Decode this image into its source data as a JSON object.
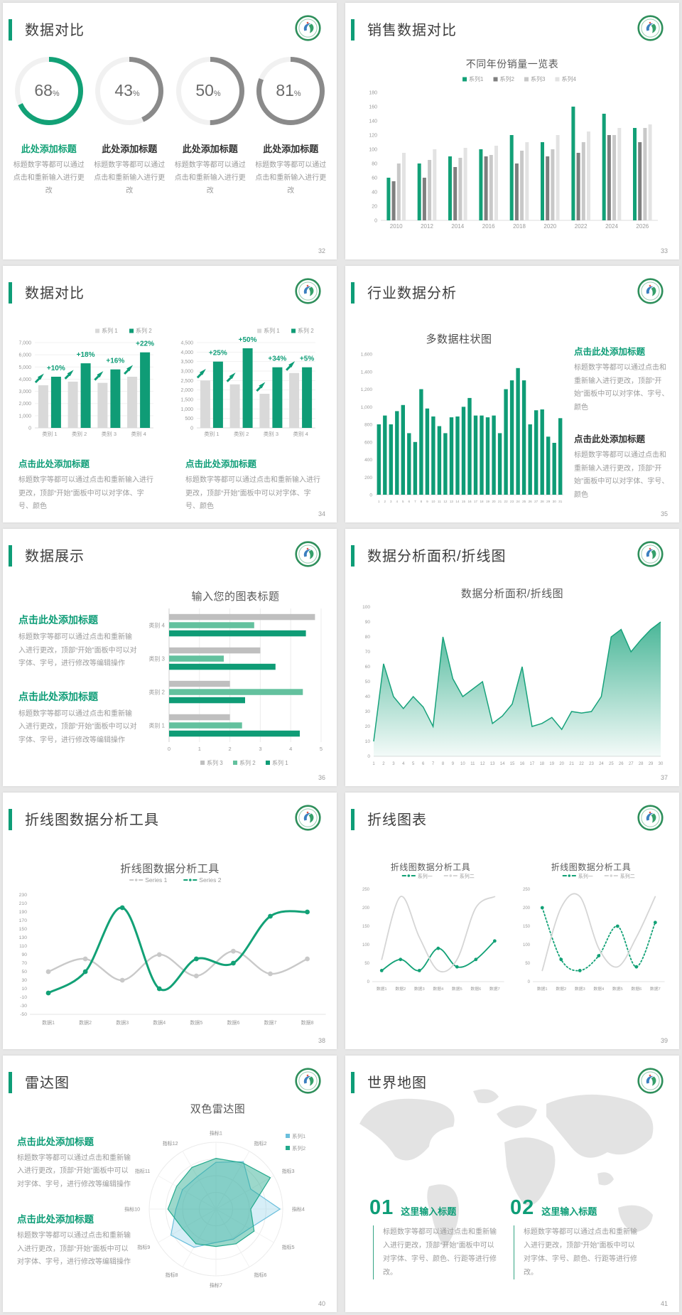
{
  "accent": "#0E9D77",
  "slides": {
    "s1": {
      "page": "32",
      "title": "数据对比",
      "items": [
        {
          "pct": 68,
          "unit": "%",
          "title": "此处添加标题",
          "body": "标题数字等都可以通过点击和重新输入进行更改",
          "color": "#12A176"
        },
        {
          "pct": 43,
          "unit": "%",
          "title": "此处添加标题",
          "body": "标题数字等都可以通过点击和重新输入进行更改",
          "color": "#8A8A8A"
        },
        {
          "pct": 50,
          "unit": "%",
          "title": "此处添加标题",
          "body": "标题数字等都可以通过点击和重新输入进行更改",
          "color": "#8A8A8A"
        },
        {
          "pct": 81,
          "unit": "%",
          "title": "此处添加标题",
          "body": "标题数字等都可以通过点击和重新输入进行更改",
          "color": "#8A8A8A"
        }
      ]
    },
    "s2": {
      "page": "33",
      "title": "销售数据对比",
      "chart": {
        "type": "bar",
        "title": "不同年份销量一览表",
        "legend": [
          "系列1",
          "系列2",
          "系列3",
          "系列4"
        ],
        "colors": [
          "#12A077",
          "#7F7F7F",
          "#C8C8C8",
          "#E3E3E3"
        ],
        "categories": [
          "2010",
          "2012",
          "2014",
          "2016",
          "2018",
          "2020",
          "2022",
          "2024",
          "2026"
        ],
        "series": [
          [
            60,
            80,
            90,
            100,
            120,
            110,
            160,
            150,
            130
          ],
          [
            55,
            60,
            75,
            90,
            80,
            90,
            95,
            120,
            110
          ],
          [
            80,
            85,
            88,
            92,
            98,
            100,
            110,
            120,
            130
          ],
          [
            95,
            100,
            102,
            105,
            110,
            120,
            125,
            130,
            135
          ]
        ],
        "ymax": 180,
        "ystep": 20
      }
    },
    "s3": {
      "page": "34",
      "title": "数据对比",
      "charts": [
        {
          "type": "bar",
          "legend": [
            "系列 1",
            "系列 2"
          ],
          "colors": [
            "#D9D9D9",
            "#0F9C76"
          ],
          "categories": [
            "类别 1",
            "类别 2",
            "类别 3",
            "类别 4"
          ],
          "series": [
            [
              3500,
              3800,
              3700,
              4200
            ],
            [
              4200,
              5300,
              4800,
              6200
            ]
          ],
          "ymax": 7000,
          "ystep": 1000,
          "labels": [
            "+10%",
            "+18%",
            "+16%",
            "+22%"
          ]
        },
        {
          "type": "bar",
          "legend": [
            "系列 1",
            "系列 2"
          ],
          "colors": [
            "#D9D9D9",
            "#0F9C76"
          ],
          "categories": [
            "类别 1",
            "类别 2",
            "类别 3",
            "类别 4"
          ],
          "series": [
            [
              2500,
              2300,
              1800,
              2900
            ],
            [
              3500,
              4200,
              3200,
              3200
            ]
          ],
          "ymax": 4500,
          "ystep": 500,
          "labels": [
            "+25%",
            "+50%",
            "+34%",
            "+5%"
          ]
        }
      ],
      "blocks": [
        {
          "h": "点击此处添加标题",
          "b": "标题数字等都可以通过点击和重新输入进行更改，顶部“开始”面板中可以对字体、字号、颜色"
        },
        {
          "h": "点击此处添加标题",
          "b": "标题数字等都可以通过点击和重新输入进行更改，顶部“开始”面板中可以对字体、字号、颜色"
        }
      ]
    },
    "s4": {
      "page": "35",
      "title": "行业数据分析",
      "chart": {
        "type": "bar",
        "title": "多数据柱状图",
        "color": "#0F9C76",
        "values": [
          800,
          900,
          800,
          950,
          1020,
          700,
          600,
          1200,
          980,
          890,
          780,
          700,
          880,
          890,
          1000,
          1100,
          900,
          900,
          880,
          900,
          700,
          1200,
          1300,
          1440,
          1300,
          800,
          960,
          970,
          660,
          590,
          870
        ],
        "xlabels": [
          "1",
          "2",
          "3",
          "4",
          "5",
          "6",
          "7",
          "8",
          "9",
          "10",
          "11",
          "12",
          "13",
          "14",
          "15",
          "16",
          "17",
          "18",
          "19",
          "20",
          "21",
          "22",
          "23",
          "24",
          "25",
          "26",
          "27",
          "28",
          "29",
          "30",
          "31"
        ],
        "ymax": 1600,
        "ystep": 200
      },
      "blocks": [
        {
          "h": "点击此处添加标题",
          "b": "标题数字等都可以通过点击和重新输入进行更改，顶部“开始”面板中可以对字体、字号、颜色"
        },
        {
          "h": "点击此处添加标题",
          "b": "标题数字等都可以通过点击和重新输入进行更改，顶部“开始”面板中可以对字体、字号、颜色"
        }
      ]
    },
    "s5": {
      "page": "36",
      "title": "数据展示",
      "chart": {
        "type": "hbar",
        "title": "输入您的图表标题",
        "legend": [
          "系列 3",
          "系列 2",
          "系列 1"
        ],
        "colors": [
          "#BFBFBF",
          "#63C19E",
          "#0F9C76"
        ],
        "categories": [
          "类别 4",
          "类别 3",
          "类别 2",
          "类别 1"
        ],
        "rows": [
          [
            4.8,
            2.8,
            4.5
          ],
          [
            3.0,
            1.8,
            3.5
          ],
          [
            2.0,
            4.4,
            2.5
          ],
          [
            2.0,
            2.4,
            4.3
          ]
        ],
        "xmax": 5,
        "xstep": 1
      },
      "blocks": [
        {
          "h": "点击此处添加标题",
          "b": "标题数字等都可以通过点击和重新输入进行更改，顶部“开始”面板中可以对字体、字号，进行修改等编辑操作"
        },
        {
          "h": "点击此处添加标题",
          "b": "标题数字等都可以通过点击和重新输入进行更改，顶部“开始”面板中可以对字体、字号，进行修改等编辑操作"
        }
      ]
    },
    "s6": {
      "page": "37",
      "title": "数据分析面积/折线图",
      "chart": {
        "type": "area",
        "title": "数据分析面积/折线图",
        "color": "#17A27B",
        "values": [
          10,
          62,
          40,
          32,
          40,
          33,
          20,
          80,
          52,
          40,
          45,
          50,
          22,
          27,
          35,
          60,
          20,
          22,
          26,
          18,
          30,
          29,
          30,
          40,
          80,
          85,
          70,
          78,
          85,
          90
        ],
        "ymax": 100,
        "ystep": 10
      }
    },
    "s7": {
      "page": "38",
      "title": "折线图数据分析工具",
      "chart": {
        "type": "line",
        "title": "折线图数据分析工具",
        "legend": [
          "Series 1",
          "Series 2"
        ],
        "colors": [
          "#C9C9C9",
          "#12A176"
        ],
        "x": [
          "数据1",
          "数据2",
          "数据3",
          "数据4",
          "数据5",
          "数据6",
          "数据7",
          "数据8"
        ],
        "series": [
          [
            50,
            80,
            30,
            90,
            40,
            98,
            45,
            80
          ],
          [
            0,
            50,
            200,
            10,
            80,
            70,
            180,
            190
          ]
        ],
        "ymin": -50,
        "ymax": 230,
        "ystep": 20
      }
    },
    "s8": {
      "page": "39",
      "title": "折线图表",
      "ymax": 250,
      "ystep": 50,
      "charts": [
        {
          "type": "line",
          "title": "折线图数据分析工具",
          "legend": [
            "系列一",
            "系列二"
          ],
          "colors": [
            "#12A176",
            "#D5D5D5"
          ],
          "x": [
            "数据1",
            "数据2",
            "数据3",
            "数据4",
            "数据5",
            "数据6",
            "数据7"
          ],
          "series": [
            [
              30,
              60,
              30,
              90,
              40,
              60,
              110
            ],
            [
              60,
              230,
              120,
              30,
              60,
              200,
              230
            ]
          ],
          "dotted": false
        },
        {
          "type": "line",
          "title": "折线图数据分析工具",
          "legend": [
            "系列一",
            "系列二"
          ],
          "colors": [
            "#12A176",
            "#D5D5D5"
          ],
          "x": [
            "数据1",
            "数据2",
            "数据3",
            "数据4",
            "数据5",
            "数据6",
            "数据7"
          ],
          "series": [
            [
              200,
              60,
              30,
              70,
              150,
              40,
              160
            ],
            [
              30,
              200,
              230,
              90,
              40,
              120,
              230
            ]
          ],
          "dotted": true
        }
      ]
    },
    "s9": {
      "page": "40",
      "title": "雷达图",
      "chart": {
        "type": "radar",
        "title": "双色雷达图",
        "axes": [
          "指标1",
          "指标2",
          "指标3",
          "指标4",
          "指标5",
          "指标6",
          "指标7",
          "指标8",
          "指标9",
          "指标10",
          "指标11",
          "指标12"
        ],
        "legend": [
          "系列1",
          "系列2"
        ],
        "colors": [
          "#6BBFDC",
          "#23A98C"
        ],
        "series": [
          [
            0.7,
            0.82,
            0.6,
            0.96,
            0.58,
            0.52,
            0.5,
            0.66,
            0.78,
            0.6,
            0.58,
            0.56
          ],
          [
            0.76,
            0.8,
            0.94,
            0.52,
            0.66,
            0.6,
            0.56,
            0.6,
            0.58,
            0.72,
            0.68,
            0.72
          ]
        ]
      },
      "blocks": [
        {
          "h": "点击此处添加标题",
          "b": "标题数字等都可以通过点击和重新输入进行更改，顶部“开始”面板中可以对字体、字号，进行修改等编辑操作"
        },
        {
          "h": "点击此处添加标题",
          "b": "标题数字等都可以通过点击和重新输入进行更改，顶部“开始”面板中可以对字体、字号，进行修改等编辑操作"
        }
      ]
    },
    "s10": {
      "page": "41",
      "title": "世界地图",
      "items": [
        {
          "num": "01",
          "h": "这里输入标题",
          "b": "标题数字等都可以通过点击和重新输入进行更改，顶部“开始”面板中可以对字体、字号、颜色、行距等进行修改。"
        },
        {
          "num": "02",
          "h": "这里输入标题",
          "b": "标题数字等都可以通过点击和重新输入进行更改，顶部“开始”面板中可以对字体、字号、颜色、行距等进行修改。"
        }
      ]
    }
  }
}
